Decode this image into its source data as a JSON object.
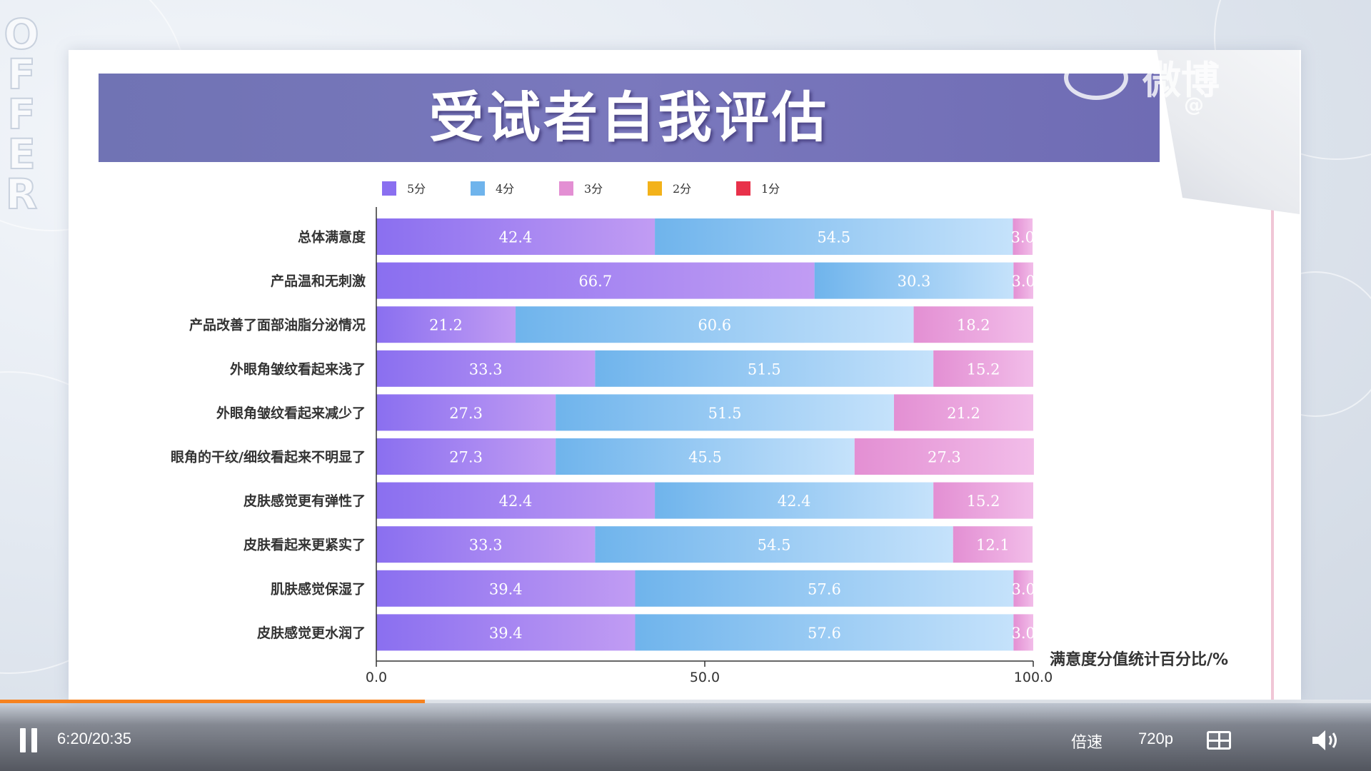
{
  "title": "受试者自我评估",
  "watermark": {
    "text": "微博",
    "handle": "@"
  },
  "colors": {
    "s5": [
      "#8a6ff0",
      "#c19cf3"
    ],
    "s4": [
      "#6fb4ec",
      "#c5e2fb"
    ],
    "s3": [
      "#e38fd3",
      "#f2bde9"
    ],
    "s2": [
      "#f3b21a",
      "#f7c53c"
    ],
    "s1": [
      "#e8314a",
      "#ef4a5e"
    ]
  },
  "chart_data": {
    "type": "bar",
    "orientation": "horizontal",
    "stacked": true,
    "title": "受试者自我评估",
    "xlabel": "满意度分值统计百分比/%",
    "ylabel": "",
    "xlim": [
      0,
      100
    ],
    "xticks": [
      "0.0",
      "50.0",
      "100.0"
    ],
    "legend_position": "top",
    "grid": false,
    "categories": [
      "总体满意度",
      "产品温和无刺激",
      "产品改善了面部油脂分泌情况",
      "外眼角皱纹看起来浅了",
      "外眼角皱纹看起来减少了",
      "眼角的干纹/细纹看起来不明显了",
      "皮肤感觉更有弹性了",
      "皮肤看起来更紧实了",
      "肌肤感觉保湿了",
      "皮肤感觉更水润了"
    ],
    "series": [
      {
        "name": "5分",
        "values": [
          42.4,
          66.7,
          21.2,
          33.3,
          27.3,
          27.3,
          42.4,
          33.3,
          39.4,
          39.4
        ],
        "labels": [
          "42.4",
          "66.7",
          "21.2",
          "33.3",
          "27.3",
          "27.3",
          "42.4",
          "33.3",
          "39.4",
          "39.4"
        ]
      },
      {
        "name": "4分",
        "values": [
          54.5,
          30.3,
          60.6,
          51.5,
          51.5,
          45.5,
          42.4,
          54.5,
          57.6,
          57.6
        ],
        "labels": [
          "54.5",
          "30.3",
          "60.6",
          "51.5",
          "51.5",
          "45.5",
          "42.4",
          "54.5",
          "57.6",
          "57.6"
        ]
      },
      {
        "name": "3分",
        "values": [
          3.0,
          3.0,
          18.2,
          15.2,
          21.2,
          27.3,
          15.2,
          12.1,
          3.0,
          3.0
        ],
        "labels": [
          "3.0",
          "3.0",
          "18.2",
          "15.2",
          "21.2",
          "27.3",
          "15.2",
          "12.1",
          "3.0",
          "3.0"
        ]
      },
      {
        "name": "2分",
        "values": [
          0,
          0,
          0,
          0,
          0,
          0,
          0,
          0,
          0,
          0
        ]
      },
      {
        "name": "1分",
        "values": [
          0,
          0,
          0,
          0,
          0,
          0,
          0,
          0,
          0,
          0
        ]
      }
    ]
  },
  "player": {
    "time": "6:20/20:35",
    "progress": 0.31,
    "speed_label": "倍速",
    "quality_label": "720p",
    "pip_icon": "picture-in-picture-icon",
    "volume_icon": "volume-icon",
    "pause_icon": "pause-icon"
  }
}
